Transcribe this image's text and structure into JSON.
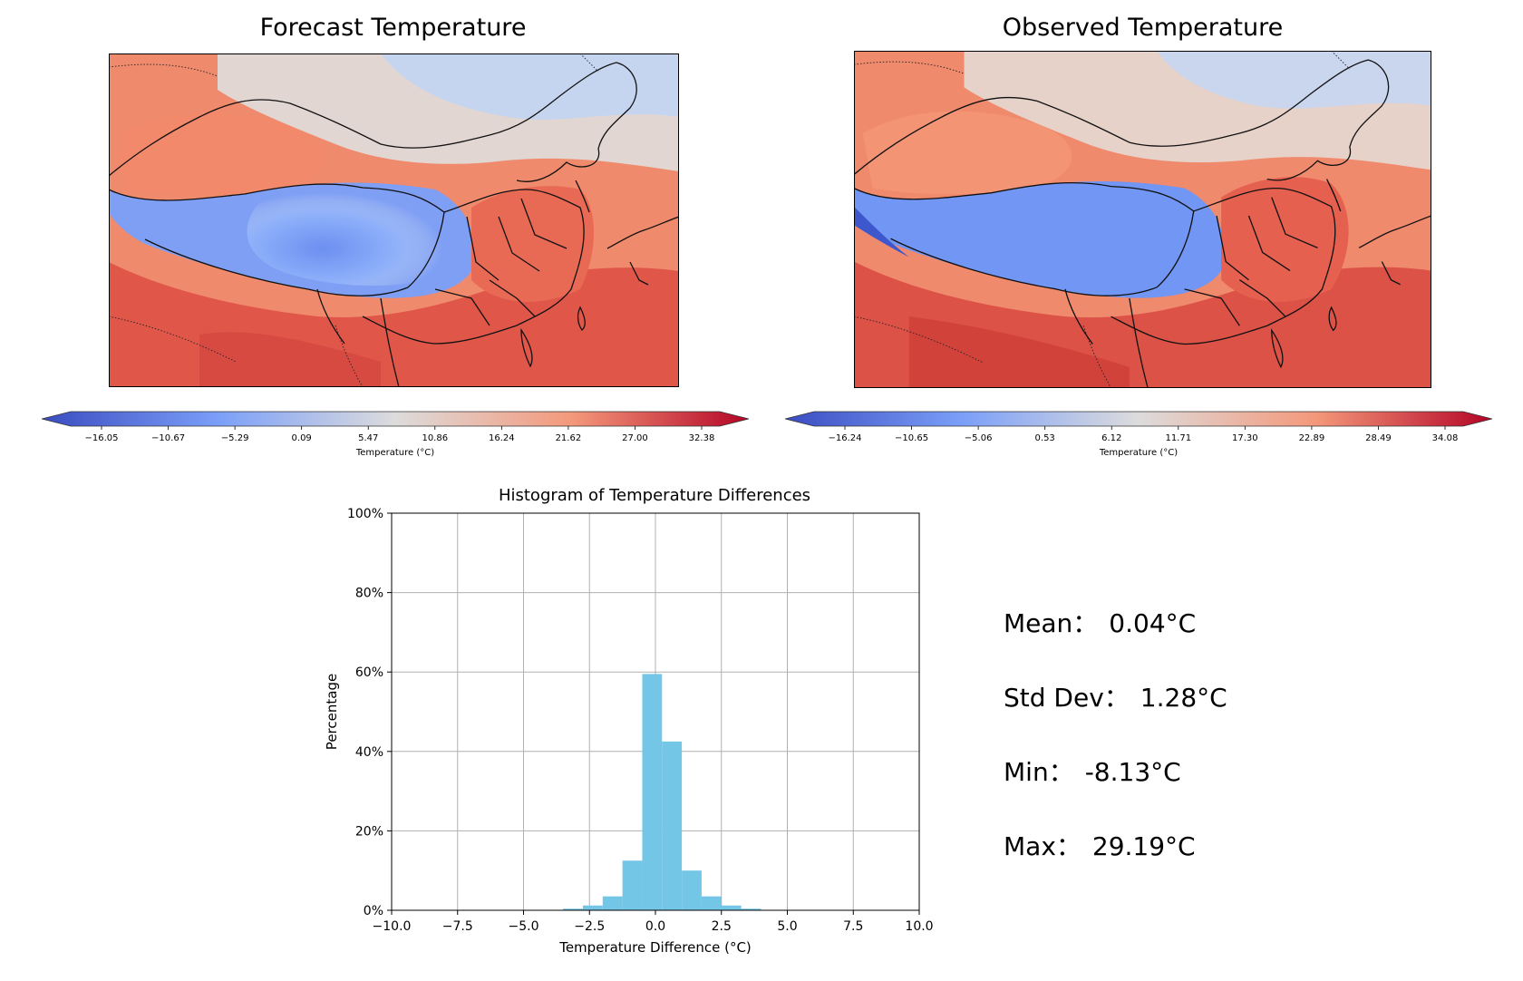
{
  "panels": {
    "forecast": {
      "title": "Forecast Temperature",
      "colorbar": {
        "label": "Temperature (°C)",
        "ticks": [
          "−16.05",
          "−10.67",
          "−5.29",
          "0.09",
          "5.47",
          "10.86",
          "16.24",
          "21.62",
          "27.00",
          "32.38"
        ]
      }
    },
    "observed": {
      "title": "Observed Temperature",
      "colorbar": {
        "label": "Temperature (°C)",
        "ticks": [
          "−16.24",
          "−10.65",
          "−5.06",
          "0.53",
          "6.12",
          "11.71",
          "17.30",
          "22.89",
          "28.49",
          "34.08"
        ]
      }
    }
  },
  "colors": {
    "cold": "#3a4cc0",
    "mid": "#dddcdc",
    "warm": "#b40426",
    "bar": "#73c6e6"
  },
  "chart_data": {
    "type": "bar",
    "title": "Histogram of Temperature Differences",
    "xlabel": "Temperature Difference (°C)",
    "ylabel": "Percentage",
    "xlim": [
      -10,
      10
    ],
    "ylim": [
      0,
      100
    ],
    "xticks": [
      "−10.0",
      "−7.5",
      "−5.0",
      "−2.5",
      "0.0",
      "2.5",
      "5.0",
      "7.5",
      "10.0"
    ],
    "yticks": [
      "0%",
      "20%",
      "40%",
      "60%",
      "80%",
      "100%"
    ],
    "grid": true,
    "bins": [
      {
        "x0": -5.0,
        "x1": -4.25,
        "value": 0.05
      },
      {
        "x0": -4.25,
        "x1": -3.5,
        "value": 0.1
      },
      {
        "x0": -3.5,
        "x1": -2.75,
        "value": 0.4
      },
      {
        "x0": -2.75,
        "x1": -2.0,
        "value": 1.2
      },
      {
        "x0": -2.0,
        "x1": -1.25,
        "value": 3.5
      },
      {
        "x0": -1.25,
        "x1": -0.5,
        "value": 12.5
      },
      {
        "x0": -0.5,
        "x1": 0.25,
        "value": 59.5
      },
      {
        "x0": 0.25,
        "x1": 1.0,
        "value": 42.5
      },
      {
        "x0": 1.0,
        "x1": 1.75,
        "value": 10.0
      },
      {
        "x0": 1.75,
        "x1": 2.5,
        "value": 3.5
      },
      {
        "x0": 2.5,
        "x1": 3.25,
        "value": 1.2
      },
      {
        "x0": 3.25,
        "x1": 4.0,
        "value": 0.4
      },
      {
        "x0": 4.0,
        "x1": 4.75,
        "value": 0.1
      }
    ]
  },
  "stats": [
    {
      "label": "Mean：",
      "value": "0.04°C"
    },
    {
      "label": "Std Dev：",
      "value": "1.28°C"
    },
    {
      "label": "Min：",
      "value": "-8.13°C"
    },
    {
      "label": "Max：",
      "value": "29.19°C"
    }
  ]
}
